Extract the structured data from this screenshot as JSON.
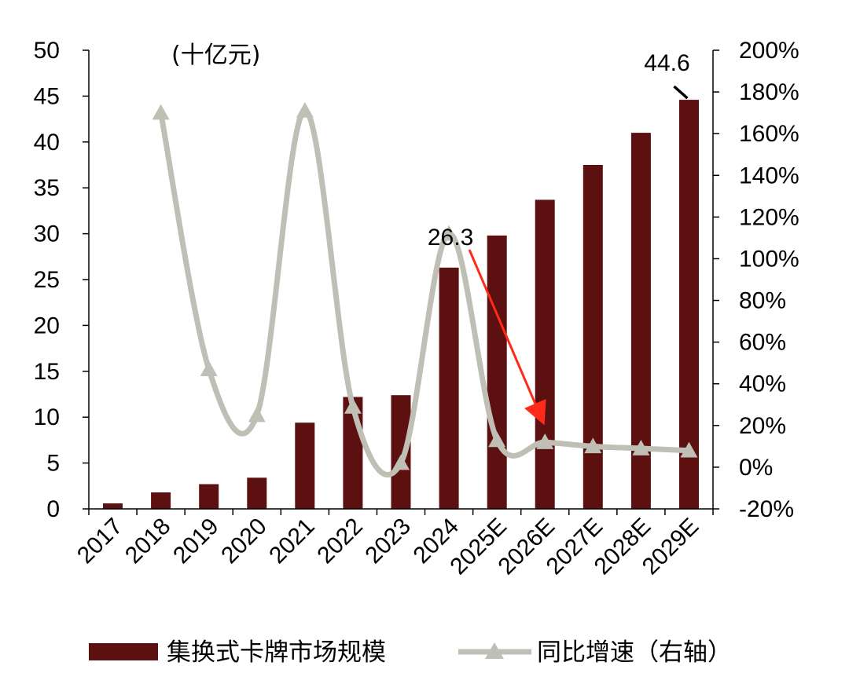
{
  "chart_data": {
    "type": "bar",
    "unit_label": "(十亿元)",
    "categories": [
      "2017",
      "2018",
      "2019",
      "2020",
      "2021",
      "2022",
      "2023",
      "2024",
      "2025E",
      "2026E",
      "2027E",
      "2028E",
      "2029E"
    ],
    "series": [
      {
        "name": "集换式卡牌市场规模",
        "type": "bar",
        "axis": "left",
        "color": "#5c1010",
        "values": [
          0.6,
          1.8,
          2.7,
          3.4,
          9.4,
          12.2,
          12.4,
          26.3,
          29.8,
          33.7,
          37.5,
          41.0,
          44.6
        ]
      },
      {
        "name": "同比增速（右轴）",
        "type": "line",
        "axis": "right",
        "color": "#c0bfb5",
        "marker": "triangle",
        "values": [
          null,
          170,
          47,
          25,
          171,
          29,
          2,
          112,
          13,
          12,
          10,
          9,
          8
        ]
      }
    ],
    "y_left": {
      "min": 0,
      "max": 50,
      "step": 5
    },
    "y_right": {
      "min": -20,
      "max": 200,
      "step": 20,
      "format": "percent"
    },
    "annotations": [
      {
        "text": "26.3",
        "category": "2024"
      },
      {
        "text": "44.6",
        "category": "2029E"
      }
    ],
    "arrow": {
      "from_category": "2024",
      "to_category": "2026E",
      "color": "#ff2a1a"
    },
    "legend_position": "bottom",
    "grid": false
  }
}
